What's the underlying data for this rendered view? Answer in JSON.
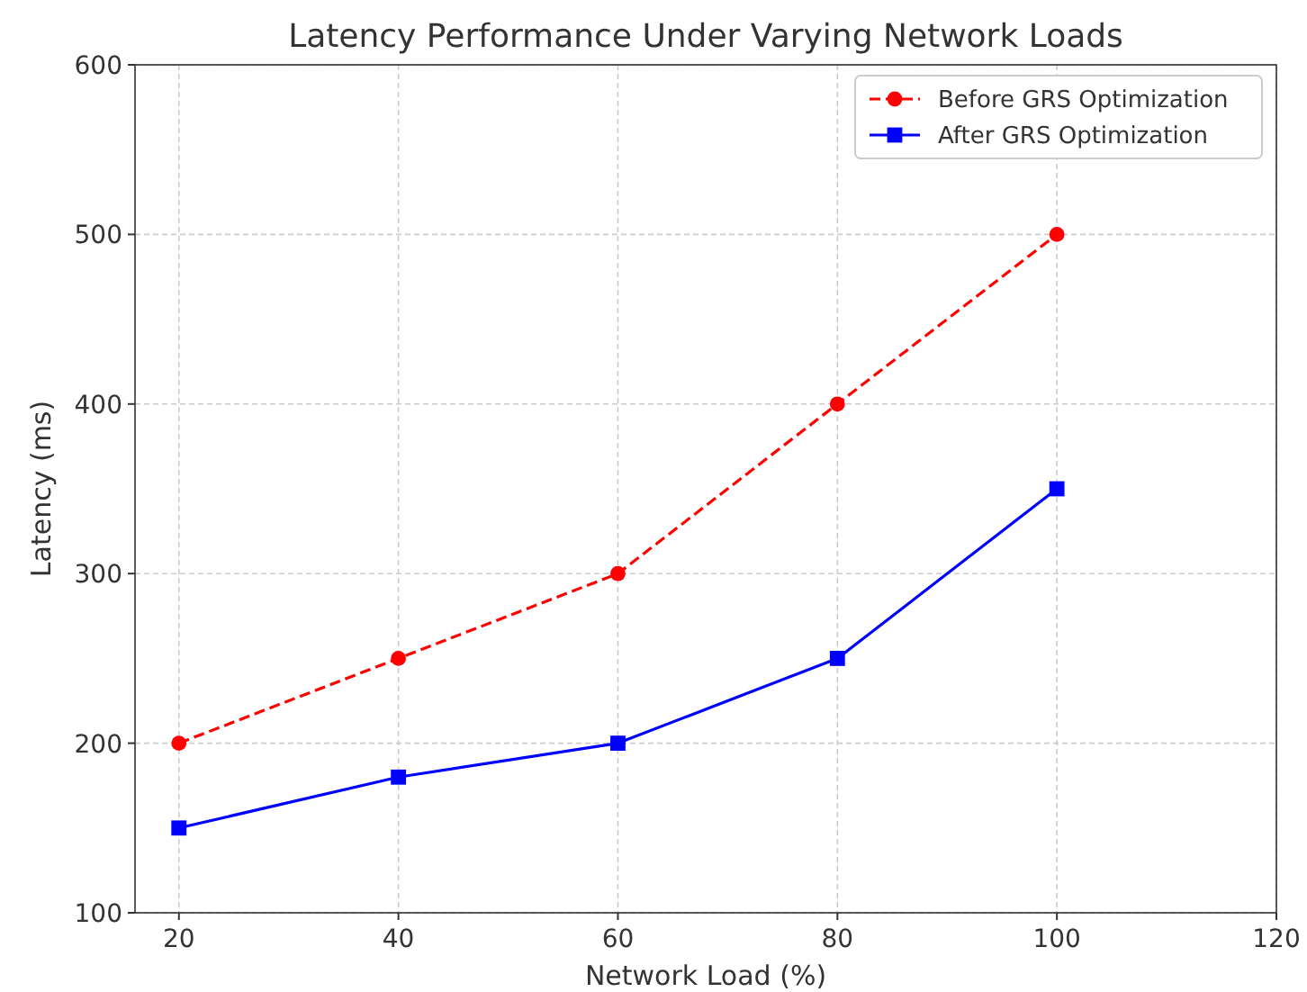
{
  "chart_data": {
    "type": "line",
    "title": "Latency Performance Under Varying Network Loads",
    "xlabel": "Network Load (%)",
    "ylabel": "Latency (ms)",
    "x": [
      20,
      40,
      60,
      80,
      100
    ],
    "series": [
      {
        "name": "Before GRS Optimization",
        "color": "#ff0000",
        "values": [
          200,
          250,
          300,
          400,
          500
        ],
        "marker": "circle",
        "line_style": "dashed"
      },
      {
        "name": "After GRS Optimization",
        "color": "#0000ff",
        "values": [
          150,
          180,
          200,
          250,
          350
        ],
        "marker": "square",
        "line_style": "solid"
      }
    ],
    "xlim": [
      16,
      120
    ],
    "xticks": [
      20,
      40,
      60,
      80,
      100,
      120
    ],
    "ylim": [
      100,
      600
    ],
    "yticks": [
      100,
      200,
      300,
      400,
      500,
      600
    ],
    "grid": true,
    "legend": "top right"
  }
}
